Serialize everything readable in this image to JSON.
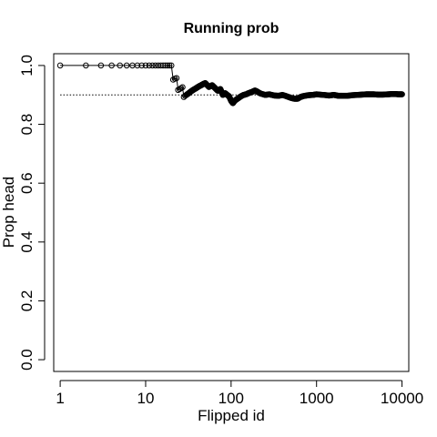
{
  "chart_data": {
    "type": "line",
    "title": "Running prob",
    "xlabel": "Flipped id",
    "ylabel": "Prop head",
    "x_scale": "log",
    "xlim": [
      0.84,
      12000
    ],
    "ylim": [
      -0.04,
      1.04
    ],
    "x_ticks": [
      1,
      10,
      100,
      1000,
      10000
    ],
    "x_tick_labels": [
      "1",
      "10",
      "100",
      "1000",
      "10000"
    ],
    "y_ticks": [
      0.0,
      0.2,
      0.4,
      0.6,
      0.8,
      1.0
    ],
    "y_tick_labels": [
      "0.0",
      "0.2",
      "0.4",
      "0.6",
      "0.8",
      "1.0"
    ],
    "reference_line": {
      "y": 0.9,
      "x_range": [
        1,
        10000
      ],
      "style": "dotted"
    },
    "series": [
      {
        "marker": "open-circle",
        "points": [
          [
            1,
            1.0
          ],
          [
            2,
            1.0
          ],
          [
            3,
            1.0
          ],
          [
            4,
            1.0
          ],
          [
            5,
            1.0
          ],
          [
            6,
            1.0
          ],
          [
            7,
            1.0
          ],
          [
            8,
            1.0
          ],
          [
            9,
            1.0
          ],
          [
            10,
            1.0
          ],
          [
            11,
            1.0
          ],
          [
            12,
            1.0
          ],
          [
            13,
            1.0
          ],
          [
            14,
            1.0
          ],
          [
            15,
            1.0
          ],
          [
            16,
            1.0
          ],
          [
            17,
            1.0
          ],
          [
            18,
            1.0
          ],
          [
            19,
            1.0
          ],
          [
            20,
            1.0
          ],
          [
            21,
            0.952
          ],
          [
            22,
            0.955
          ],
          [
            23,
            0.957
          ],
          [
            24,
            0.917
          ],
          [
            25,
            0.92
          ],
          [
            26,
            0.923
          ],
          [
            27,
            0.926
          ],
          [
            28,
            0.893
          ],
          [
            29,
            0.897
          ],
          [
            30,
            0.9
          ],
          [
            32,
            0.906
          ],
          [
            34,
            0.912
          ],
          [
            36,
            0.917
          ],
          [
            38,
            0.921
          ],
          [
            40,
            0.925
          ],
          [
            42,
            0.929
          ],
          [
            44,
            0.932
          ],
          [
            46,
            0.935
          ],
          [
            48,
            0.938
          ],
          [
            50,
            0.94
          ],
          [
            55,
            0.927
          ],
          [
            60,
            0.933
          ],
          [
            65,
            0.923
          ],
          [
            70,
            0.914
          ],
          [
            75,
            0.92
          ],
          [
            80,
            0.9
          ],
          [
            85,
            0.906
          ],
          [
            90,
            0.9
          ],
          [
            95,
            0.895
          ],
          [
            100,
            0.88
          ],
          [
            105,
            0.872
          ],
          [
            110,
            0.88
          ],
          [
            120,
            0.888
          ],
          [
            130,
            0.895
          ],
          [
            140,
            0.9
          ],
          [
            150,
            0.902
          ],
          [
            160,
            0.906
          ],
          [
            175,
            0.91
          ],
          [
            190,
            0.915
          ],
          [
            200,
            0.912
          ],
          [
            220,
            0.905
          ],
          [
            250,
            0.9
          ],
          [
            280,
            0.902
          ],
          [
            320,
            0.898
          ],
          [
            360,
            0.897
          ],
          [
            400,
            0.9
          ],
          [
            450,
            0.895
          ],
          [
            500,
            0.89
          ],
          [
            550,
            0.887
          ],
          [
            600,
            0.887
          ],
          [
            650,
            0.893
          ],
          [
            700,
            0.896
          ],
          [
            800,
            0.899
          ],
          [
            900,
            0.9
          ],
          [
            1000,
            0.902
          ],
          [
            1200,
            0.9
          ],
          [
            1400,
            0.898
          ],
          [
            1600,
            0.9
          ],
          [
            1800,
            0.897
          ],
          [
            2000,
            0.897
          ],
          [
            2300,
            0.897
          ],
          [
            2600,
            0.899
          ],
          [
            3000,
            0.9
          ],
          [
            3400,
            0.901
          ],
          [
            3800,
            0.902
          ],
          [
            4200,
            0.902
          ],
          [
            4700,
            0.902
          ],
          [
            5200,
            0.901
          ],
          [
            6000,
            0.901
          ],
          [
            6800,
            0.902
          ],
          [
            7600,
            0.903
          ],
          [
            8400,
            0.903
          ],
          [
            9200,
            0.902
          ],
          [
            10000,
            0.902
          ]
        ]
      }
    ]
  }
}
